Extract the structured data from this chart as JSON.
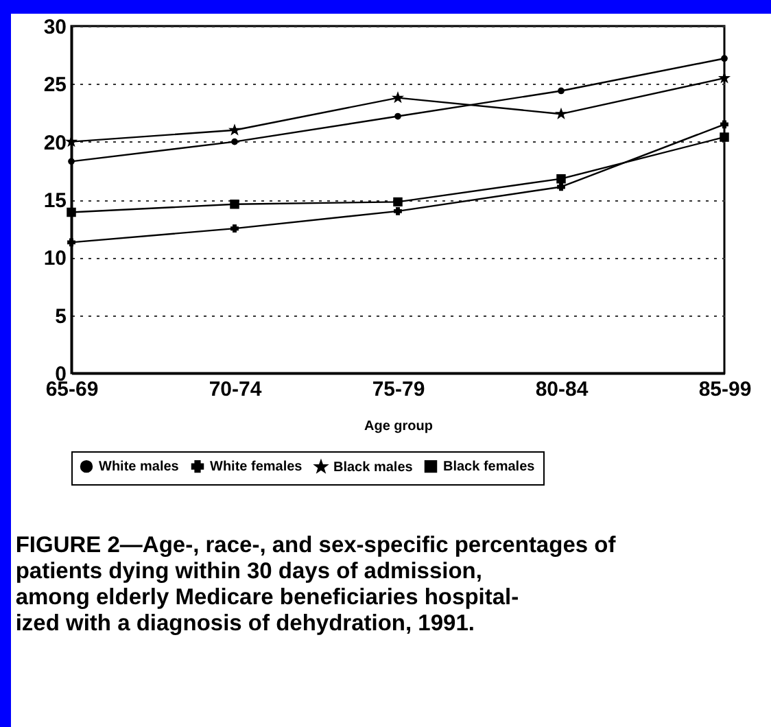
{
  "chart_data": {
    "type": "line",
    "title": "FIGURE 2—Age-, race-, and sex-specific percentages of\npatients dying within 30 days of admission,\namong elderly Medicare beneficiaries hospital-\nized with a diagnosis of dehydration, 1991.",
    "xlabel": "Age group",
    "categories": [
      "65-69",
      "70-74",
      "75-79",
      "80-84",
      "85-99"
    ],
    "series": [
      {
        "name": "White males",
        "color": "#000000",
        "marker": "circle",
        "values": [
          18.3,
          20.0,
          22.2,
          24.4,
          27.2
        ]
      },
      {
        "name": "White females",
        "color": "#000000",
        "marker": "cross",
        "values": [
          11.3,
          12.5,
          14.0,
          16.1,
          21.5
        ]
      },
      {
        "name": "Black males",
        "color": "#000000",
        "marker": "star",
        "values": [
          20.0,
          21.0,
          23.8,
          22.4,
          25.5
        ]
      },
      {
        "name": "Black females",
        "color": "#000000",
        "marker": "square",
        "values": [
          13.9,
          14.6,
          14.8,
          16.8,
          20.4
        ]
      }
    ],
    "ylim": [
      0,
      30
    ],
    "yticks": [
      0,
      5,
      10,
      15,
      20,
      25,
      30
    ],
    "grid": "y",
    "legend": "bottom",
    "line_style": "solid"
  }
}
